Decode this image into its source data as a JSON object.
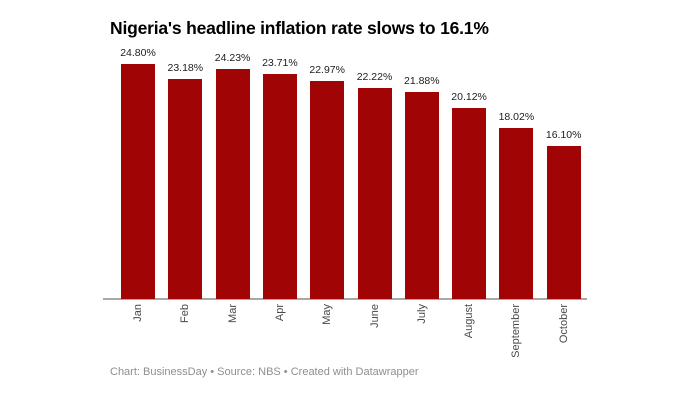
{
  "title": "Nigeria's headline inflation rate slows to 16.1%",
  "footer": "Chart: BusinessDay • Source: NBS • Created with Datawrapper",
  "colors": {
    "background": "#ffffff",
    "bar": "#a00404",
    "axis": "#a9a9a9",
    "title": "#000000",
    "value_label": "#1d1d1d",
    "month_label": "#494949",
    "footer": "#8f8f8f"
  },
  "chart_data": {
    "type": "bar",
    "title": "Nigeria's headline inflation rate slows to 16.1%",
    "categories": [
      "Jan",
      "Feb",
      "Mar",
      "Apr",
      "May",
      "June",
      "July",
      "August",
      "September",
      "October"
    ],
    "values": [
      24.8,
      23.18,
      24.23,
      23.71,
      22.97,
      22.22,
      21.88,
      20.12,
      18.02,
      16.1
    ],
    "value_labels": [
      "24.80%",
      "23.18%",
      "24.23%",
      "23.71%",
      "22.97%",
      "22.22%",
      "21.88%",
      "20.12%",
      "18.02%",
      "16.10%"
    ],
    "xlabel": "",
    "ylabel": "",
    "ylim": [
      0,
      24.8
    ],
    "grid": false,
    "legend": null,
    "x_tick_rotation": -90,
    "bar_color": "#a00404",
    "attribution": "Chart: BusinessDay • Source: NBS • Created with Datawrapper"
  }
}
